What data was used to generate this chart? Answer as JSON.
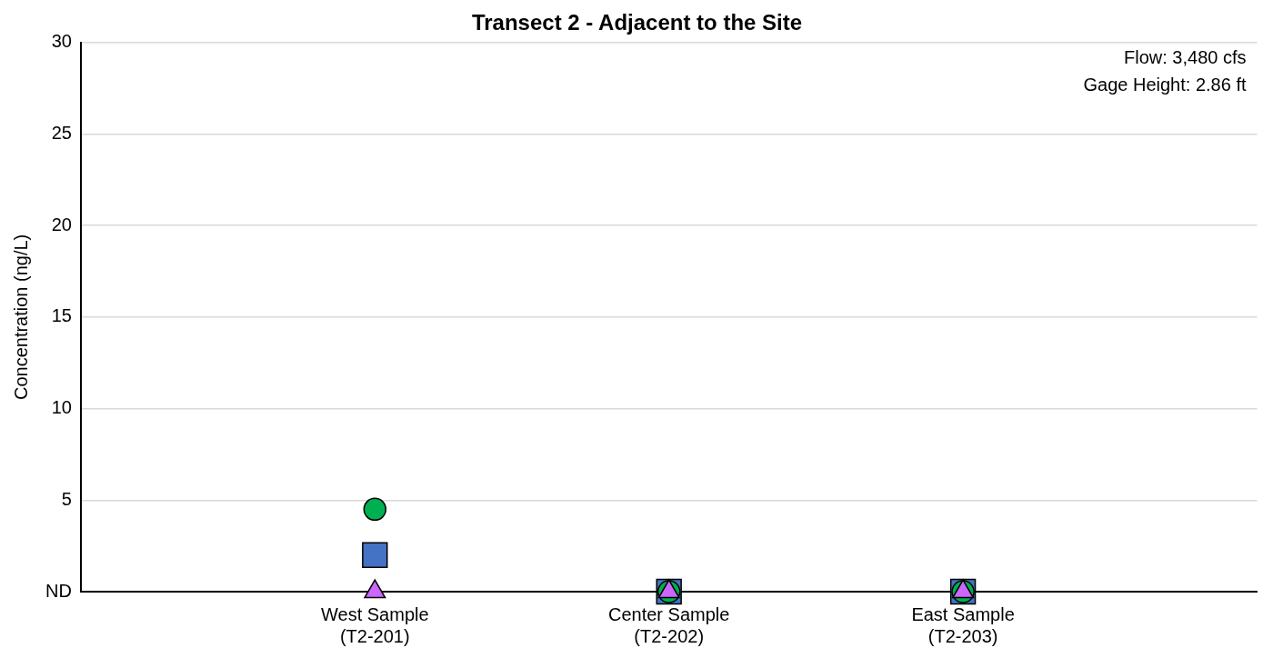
{
  "chart_data": {
    "type": "scatter",
    "title": "Transect 2 - Adjacent to the Site",
    "ylabel": "Concentration (ng/L)",
    "categories": [
      null,
      "West Sample\n(T2-201)",
      "Center Sample\n(T2-202)",
      "East Sample\n(T2-203)",
      null
    ],
    "series": [
      {
        "color": "#cc66ff",
        "marker": "triangle",
        "values": [
          null,
          0,
          0,
          0,
          null
        ]
      },
      {
        "color": "#00b050",
        "marker": "circle",
        "values": [
          null,
          4.5,
          0,
          0,
          null
        ]
      },
      {
        "color": "#4472c4",
        "marker": "square",
        "values": [
          null,
          2,
          0,
          0,
          null
        ]
      }
    ],
    "ylim": [
      0,
      30
    ],
    "yticks": [
      {
        "value": 0,
        "label": "ND"
      },
      5,
      10,
      15,
      20,
      25,
      30
    ],
    "grid": "y",
    "legend": false,
    "annotations": [
      "Flow: 3,480 cfs",
      "Gage Height: 2.86 ft"
    ]
  }
}
